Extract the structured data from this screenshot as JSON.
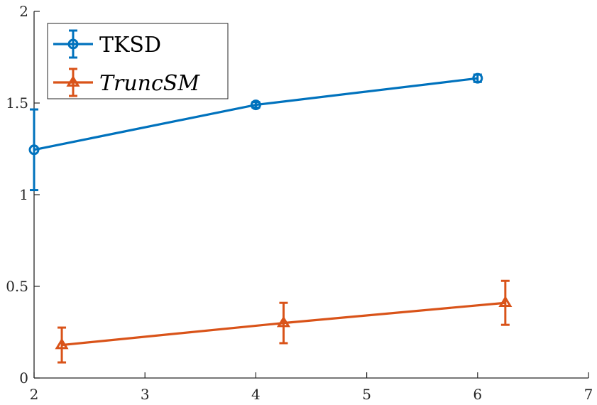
{
  "chart_data": {
    "type": "line",
    "title": "",
    "xlabel": "",
    "ylabel": "",
    "xlim": [
      2,
      7
    ],
    "ylim": [
      0,
      2
    ],
    "xticks": [
      2,
      3,
      4,
      5,
      6,
      7
    ],
    "yticks": [
      0,
      0.5,
      1,
      1.5,
      2
    ],
    "xtick_labels": [
      "2",
      "3",
      "4",
      "5",
      "6",
      "7"
    ],
    "ytick_labels": [
      "0",
      "0.5",
      "1",
      "1.5",
      "2"
    ],
    "grid": false,
    "legend_position": "top-left",
    "series": [
      {
        "name": "TKSD",
        "color": "#0072bd",
        "marker": "circle",
        "x": [
          2,
          4,
          6
        ],
        "y": [
          1.245,
          1.49,
          1.635
        ],
        "err": [
          0.22,
          0.015,
          0.02
        ]
      },
      {
        "name": "TruncSM",
        "color": "#d95319",
        "marker": "triangle",
        "italic": true,
        "x": [
          2.25,
          4.25,
          6.25
        ],
        "y": [
          0.18,
          0.3,
          0.41
        ],
        "err": [
          0.095,
          0.11,
          0.12
        ]
      }
    ]
  }
}
